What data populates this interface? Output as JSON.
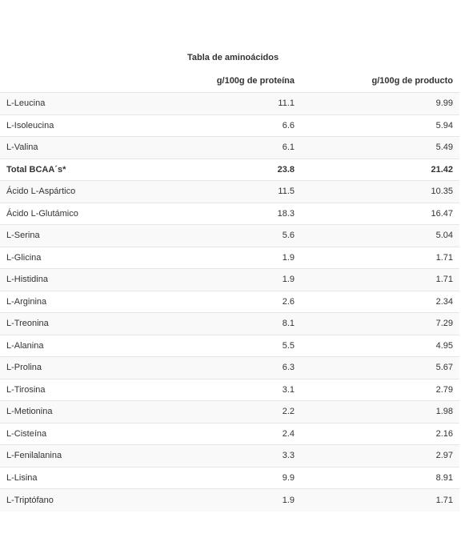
{
  "table": {
    "caption": "Tabla de aminoácidos",
    "headers": {
      "name": "",
      "per_protein": "g/100g de proteína",
      "per_product": "g/100g de producto"
    },
    "rows": [
      {
        "name": "L-Leucina",
        "per_protein": "11.1",
        "per_product": "9.99"
      },
      {
        "name": "L-Isoleucina",
        "per_protein": "6.6",
        "per_product": "5.94"
      },
      {
        "name": "L-Valina",
        "per_protein": "6.1",
        "per_product": "5.49"
      },
      {
        "name": "Total BCAA´s*",
        "per_protein": "23.8",
        "per_product": "21.42"
      },
      {
        "name": "Ácido L-Aspártico",
        "per_protein": "11.5",
        "per_product": "10.35"
      },
      {
        "name": "Ácido L-Glutámico",
        "per_protein": "18.3",
        "per_product": "16.47"
      },
      {
        "name": "L-Serina",
        "per_protein": "5.6",
        "per_product": "5.04"
      },
      {
        "name": "L-Glicina",
        "per_protein": "1.9",
        "per_product": "1.71"
      },
      {
        "name": "L-Histidina",
        "per_protein": "1.9",
        "per_product": "1.71"
      },
      {
        "name": "L-Arginina",
        "per_protein": "2.6",
        "per_product": "2.34"
      },
      {
        "name": "L-Treonina",
        "per_protein": "8.1",
        "per_product": "7.29"
      },
      {
        "name": "L-Alanina",
        "per_protein": "5.5",
        "per_product": "4.95"
      },
      {
        "name": "L-Prolina",
        "per_protein": "6.3",
        "per_product": "5.67"
      },
      {
        "name": "L-Tirosina",
        "per_protein": "3.1",
        "per_product": "2.79"
      },
      {
        "name": "L-Metionina",
        "per_protein": "2.2",
        "per_product": "1.98"
      },
      {
        "name": "L-Cisteína",
        "per_protein": "2.4",
        "per_product": "2.16"
      },
      {
        "name": "L-Fenilalanina",
        "per_protein": "3.3",
        "per_product": "2.97"
      },
      {
        "name": "L-Lisina",
        "per_protein": "9.9",
        "per_product": "8.91"
      },
      {
        "name": "L-Triptófano",
        "per_protein": "1.9",
        "per_product": "1.71"
      }
    ],
    "bold_row_index": 3
  }
}
